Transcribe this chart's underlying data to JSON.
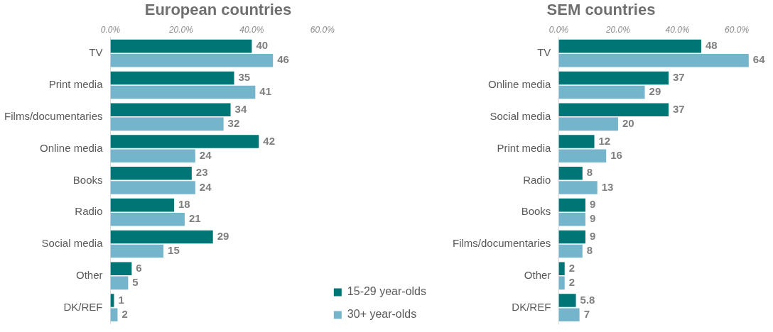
{
  "chart_data": [
    {
      "type": "bar",
      "orientation": "horizontal",
      "title": "European countries",
      "categories": [
        "TV",
        "Print media",
        "Films/documentaries",
        "Online media",
        "Books",
        "Radio",
        "Social media",
        "Other",
        "DK/REF"
      ],
      "series": [
        {
          "name": "15-29 year-olds",
          "color": "#007575",
          "values": [
            40,
            35,
            34,
            42,
            23,
            18,
            29,
            6,
            1
          ]
        },
        {
          "name": "30+ year-olds",
          "color": "#75b5cb",
          "values": [
            46,
            41,
            32,
            24,
            24,
            21,
            15,
            5,
            2
          ]
        }
      ],
      "xlim": [
        0,
        60
      ],
      "xticks": [
        {
          "value": 0,
          "label": "0.0%"
        },
        {
          "value": 20,
          "label": "20.0%"
        },
        {
          "value": 40,
          "label": "40.0%"
        },
        {
          "value": 60,
          "label": "60.0%"
        }
      ],
      "data_labels": true,
      "grid": false,
      "legend": "right"
    },
    {
      "type": "bar",
      "orientation": "horizontal",
      "title": "SEM countries",
      "categories": [
        "TV",
        "Online media",
        "Social media",
        "Print media",
        "Radio",
        "Books",
        "Films/documentaries",
        "Other",
        "DK/REF"
      ],
      "series": [
        {
          "color": "#007575",
          "values": [
            48,
            37,
            37,
            12,
            8,
            9,
            9,
            2,
            5.8
          ]
        },
        {
          "color": "#75b5cb",
          "values": [
            64,
            29,
            20,
            16,
            13,
            9,
            8,
            2,
            7
          ]
        }
      ],
      "xlim": [
        0,
        65
      ],
      "xticks": [
        {
          "value": 0,
          "label": "0.0%"
        },
        {
          "value": 20,
          "label": "20.0%"
        },
        {
          "value": 40,
          "label": "40.0%"
        },
        {
          "value": 60,
          "label": "60.0%"
        }
      ],
      "data_labels": true,
      "grid": false,
      "legend": false
    }
  ]
}
